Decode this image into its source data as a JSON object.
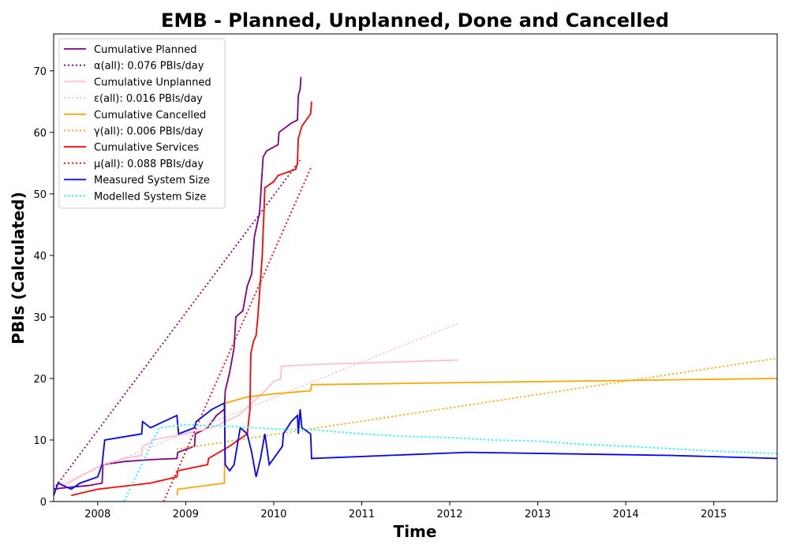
{
  "chart_data": {
    "type": "line",
    "title": "EMB - Planned, Unplanned, Done  and Cancelled",
    "xlabel": "Time",
    "ylabel": "PBIs (Calculated)",
    "xlim": [
      2007.5,
      2015.72
    ],
    "ylim": [
      0,
      76
    ],
    "x_ticks": [
      2008,
      2009,
      2010,
      2011,
      2012,
      2013,
      2014,
      2015
    ],
    "y_ticks": [
      0,
      10,
      20,
      30,
      40,
      50,
      60,
      70
    ],
    "grid": false,
    "legend_position": "top-left",
    "series": [
      {
        "name": "Cumulative Planned",
        "color": "#800080",
        "style": "solid",
        "points": [
          [
            2007.5,
            2
          ],
          [
            2007.6,
            2.2
          ],
          [
            2007.9,
            2.6
          ],
          [
            2008.05,
            3
          ],
          [
            2008.06,
            6
          ],
          [
            2008.3,
            6.5
          ],
          [
            2008.6,
            6.8
          ],
          [
            2008.9,
            7
          ],
          [
            2008.91,
            8
          ],
          [
            2009.1,
            9
          ],
          [
            2009.11,
            11
          ],
          [
            2009.25,
            12
          ],
          [
            2009.35,
            14
          ],
          [
            2009.44,
            15
          ],
          [
            2009.45,
            18
          ],
          [
            2009.5,
            21
          ],
          [
            2009.55,
            25
          ],
          [
            2009.57,
            30
          ],
          [
            2009.65,
            31
          ],
          [
            2009.7,
            35
          ],
          [
            2009.75,
            37
          ],
          [
            2009.78,
            43
          ],
          [
            2009.84,
            47
          ],
          [
            2009.88,
            56
          ],
          [
            2009.92,
            57
          ],
          [
            2010.05,
            58
          ],
          [
            2010.06,
            60
          ],
          [
            2010.2,
            61.5
          ],
          [
            2010.27,
            62
          ],
          [
            2010.28,
            66
          ],
          [
            2010.3,
            67
          ],
          [
            2010.31,
            69
          ]
        ]
      },
      {
        "name": "α(all): 0.076 PBIs/day",
        "color": "#800080",
        "style": "dotted",
        "points": [
          [
            2007.5,
            2
          ],
          [
            2010.3,
            55.5
          ]
        ]
      },
      {
        "name": "Cumulative Unplanned",
        "color": "#FFC0CB",
        "style": "solid",
        "points": [
          [
            2007.6,
            2.5
          ],
          [
            2008.05,
            6
          ],
          [
            2008.3,
            7
          ],
          [
            2008.5,
            7.5
          ],
          [
            2008.51,
            9
          ],
          [
            2008.6,
            9.5
          ],
          [
            2008.61,
            10
          ],
          [
            2009,
            11
          ],
          [
            2009.3,
            12
          ],
          [
            2009.6,
            14
          ],
          [
            2009.75,
            16
          ],
          [
            2009.9,
            18
          ],
          [
            2010.0,
            19.5
          ],
          [
            2010.08,
            20
          ],
          [
            2010.09,
            22
          ],
          [
            2010.5,
            22.3
          ],
          [
            2011,
            22.5
          ],
          [
            2012.1,
            23
          ]
        ]
      },
      {
        "name": "ε(all): 0.016 PBIs/day",
        "color": "#FFC0CB",
        "style": "dotted",
        "points": [
          [
            2007.5,
            2.5
          ],
          [
            2012.1,
            29
          ]
        ]
      },
      {
        "name": "Cumulative Cancelled",
        "color": "#FFA500",
        "style": "solid",
        "points": [
          [
            2008.9,
            1
          ],
          [
            2008.91,
            2
          ],
          [
            2009.44,
            3
          ],
          [
            2009.45,
            16
          ],
          [
            2009.7,
            17
          ],
          [
            2010,
            17.5
          ],
          [
            2010.42,
            18
          ],
          [
            2010.43,
            19
          ],
          [
            2012,
            19.3
          ],
          [
            2015.72,
            20
          ]
        ]
      },
      {
        "name": "γ(all): 0.006 PBIs/day",
        "color": "#FFA500",
        "style": "dotted",
        "points": [
          [
            2008.9,
            8.5
          ],
          [
            2015.72,
            23.3
          ]
        ]
      },
      {
        "name": "Cumulative Services",
        "color": "#FF0000",
        "style": "solid",
        "points": [
          [
            2007.7,
            1
          ],
          [
            2008,
            2
          ],
          [
            2008.3,
            2.5
          ],
          [
            2008.6,
            3
          ],
          [
            2008.9,
            4
          ],
          [
            2008.91,
            5
          ],
          [
            2009.25,
            6
          ],
          [
            2009.26,
            7
          ],
          [
            2009.5,
            9
          ],
          [
            2009.7,
            11
          ],
          [
            2009.73,
            15
          ],
          [
            2009.74,
            24
          ],
          [
            2009.77,
            26
          ],
          [
            2009.8,
            27
          ],
          [
            2009.82,
            30
          ],
          [
            2009.87,
            40
          ],
          [
            2009.9,
            51
          ],
          [
            2010,
            52
          ],
          [
            2010.05,
            53
          ],
          [
            2010.25,
            54
          ],
          [
            2010.27,
            55
          ],
          [
            2010.28,
            59
          ],
          [
            2010.32,
            61
          ],
          [
            2010.42,
            63
          ],
          [
            2010.43,
            65
          ]
        ]
      },
      {
        "name": "μ(all): 0.088 PBIs/day",
        "color": "#FF0000",
        "style": "dotted",
        "points": [
          [
            2008.75,
            0
          ],
          [
            2010.43,
            54.5
          ]
        ]
      },
      {
        "name": "Measured System Size",
        "color": "#0000FF",
        "style": "solid",
        "points": [
          [
            2007.5,
            1
          ],
          [
            2007.55,
            3
          ],
          [
            2007.7,
            2
          ],
          [
            2007.8,
            3
          ],
          [
            2008.0,
            4
          ],
          [
            2008.05,
            6
          ],
          [
            2008.08,
            10
          ],
          [
            2008.5,
            11
          ],
          [
            2008.51,
            13
          ],
          [
            2008.6,
            12
          ],
          [
            2008.9,
            14
          ],
          [
            2008.92,
            11
          ],
          [
            2009.1,
            12
          ],
          [
            2009.12,
            13
          ],
          [
            2009.3,
            15
          ],
          [
            2009.44,
            16
          ],
          [
            2009.45,
            6
          ],
          [
            2009.5,
            5
          ],
          [
            2009.55,
            6
          ],
          [
            2009.62,
            12
          ],
          [
            2009.7,
            11
          ],
          [
            2009.75,
            8
          ],
          [
            2009.8,
            4
          ],
          [
            2009.85,
            7
          ],
          [
            2009.9,
            11
          ],
          [
            2009.95,
            6
          ],
          [
            2010.05,
            8
          ],
          [
            2010.1,
            9
          ],
          [
            2010.11,
            11
          ],
          [
            2010.2,
            13
          ],
          [
            2010.27,
            14
          ],
          [
            2010.28,
            11
          ],
          [
            2010.3,
            15
          ],
          [
            2010.32,
            12
          ],
          [
            2010.42,
            11
          ],
          [
            2010.43,
            7
          ],
          [
            2012.2,
            8
          ],
          [
            2014.5,
            7.5
          ],
          [
            2015.72,
            7
          ]
        ]
      },
      {
        "name": "Modelled System Size",
        "color": "#00FFFF",
        "style": "dotted",
        "points": [
          [
            2007.5,
            0
          ],
          [
            2008.3,
            0
          ],
          [
            2008.5,
            6
          ],
          [
            2008.7,
            12
          ],
          [
            2009,
            12.5
          ],
          [
            2009.5,
            12.2
          ],
          [
            2010,
            11.8
          ],
          [
            2010.5,
            11.6
          ],
          [
            2011,
            11
          ],
          [
            2011.5,
            10.6
          ],
          [
            2012,
            10.4
          ],
          [
            2012.5,
            10
          ],
          [
            2013,
            9.8
          ],
          [
            2013.5,
            9.3
          ],
          [
            2014,
            9
          ],
          [
            2014.5,
            8.6
          ],
          [
            2015,
            8.2
          ],
          [
            2015.72,
            7.8
          ]
        ]
      }
    ]
  }
}
